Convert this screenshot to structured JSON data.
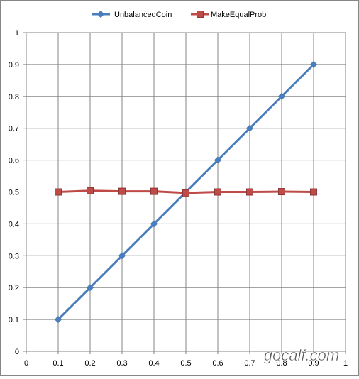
{
  "chart_data": {
    "type": "line",
    "title": "",
    "xlabel": "",
    "ylabel": "",
    "xlim": [
      0,
      1
    ],
    "ylim": [
      0,
      1
    ],
    "x_ticks": [
      "0",
      "0.1",
      "0.2",
      "0.3",
      "0.4",
      "0.5",
      "0.6",
      "0.7",
      "0.8",
      "0.9",
      "1"
    ],
    "y_ticks": [
      "0",
      "0.1",
      "0.2",
      "0.3",
      "0.4",
      "0.5",
      "0.6",
      "0.7",
      "0.8",
      "0.9",
      "1"
    ],
    "grid": true,
    "legend_position": "top",
    "series": [
      {
        "name": "UnbalancedCoin",
        "color": "#4a7ebb",
        "marker": "diamond",
        "x": [
          0.1,
          0.2,
          0.3,
          0.4,
          0.5,
          0.6,
          0.7,
          0.8,
          0.9
        ],
        "values": [
          0.1,
          0.2,
          0.3,
          0.4,
          0.5,
          0.6,
          0.7,
          0.8,
          0.9
        ]
      },
      {
        "name": "MakeEqualProb",
        "color": "#be4b48",
        "marker": "square",
        "x": [
          0.1,
          0.2,
          0.3,
          0.4,
          0.5,
          0.6,
          0.7,
          0.8,
          0.9
        ],
        "values": [
          0.5,
          0.504,
          0.502,
          0.502,
          0.497,
          0.5,
          0.5,
          0.501,
          0.5
        ]
      }
    ]
  },
  "watermark": {
    "text": "gocalf.com"
  }
}
